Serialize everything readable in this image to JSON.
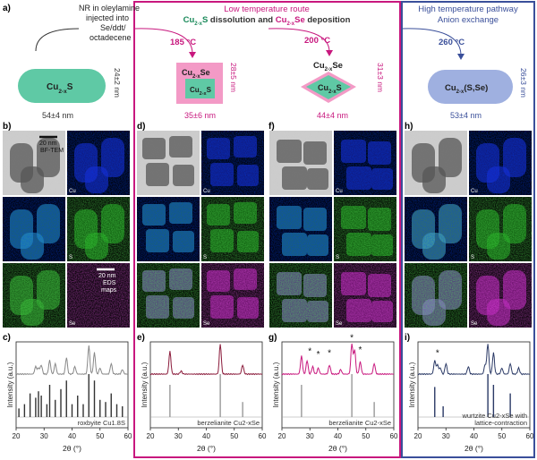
{
  "panel_letters": {
    "a": "a)",
    "b": "b)",
    "c": "c)",
    "d": "d)",
    "e": "e)",
    "f": "f)",
    "g": "g)",
    "h": "h)",
    "i": "i)"
  },
  "header": {
    "nr_line1": "NR in oleylamine",
    "nr_line2": "injected into",
    "nr_line3": "Se/ddt/",
    "nr_line4": "octadecene",
    "low_title1": "Low temperature route",
    "low_title2": "Cu2-xS dissolution and Cu2-xSe deposition",
    "high_title1": "High temperature pathway",
    "high_title2": "Anion exchange"
  },
  "temps": {
    "t185": "185 °C",
    "t200": "200 °C",
    "t260": "260 °C"
  },
  "shapes": {
    "cu2s": "Cu2-xS",
    "cu2se": "Cu2-xSe",
    "cusse": "Cu2-x(S,Se)"
  },
  "dims": {
    "a_len": "54±4 nm",
    "a_wid": "24±2 nm",
    "d_len": "35±6 nm",
    "d_wid": "28±5 nm",
    "f_len": "44±4 nm",
    "f_wid": "31±3 nm",
    "h_len": "53±4 nm",
    "h_wid": "26±3 nm"
  },
  "micro": {
    "scale_tem": "20 nm",
    "tem_label": "BF-TEM",
    "scale_eds": "20 nm",
    "eds_label1": "EDS",
    "eds_label2": "maps",
    "cu": "Cu",
    "s": "S",
    "se": "Se"
  },
  "xrd": {
    "xlabel": "2θ (°)",
    "ylabel": "Intensity (a.u.)",
    "ticks": [
      "20",
      "30",
      "40",
      "50",
      "60"
    ],
    "ref_c": "roxbyite Cu1.8S",
    "ref_e": "berzelianite Cu2-xSe",
    "ref_g": "berzelianite Cu2-xSe",
    "ref_i1": "wurtzite Cu2-xSe with",
    "ref_i2": "lattice-contraction",
    "star": "*"
  },
  "colors": {
    "low_route": "#c8187e",
    "high_route": "#3a4f9a",
    "cu2s_fill": "#5fc9a5",
    "cu2se_fill": "#f39ac6",
    "cusse_fill": "#9fb0e0",
    "xrd_c": "#888888",
    "xrd_e": "#8a1a3a",
    "xrd_g": "#c8187e",
    "xrd_i": "#2b3a66"
  }
}
